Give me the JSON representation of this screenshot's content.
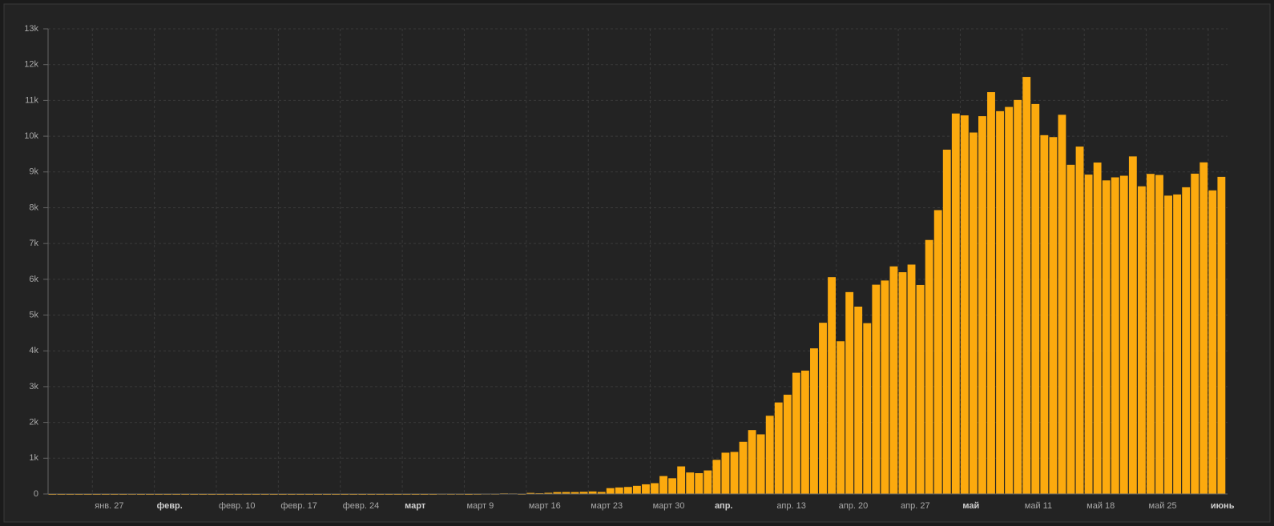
{
  "chart_data": {
    "type": "bar",
    "color": "#fcaa0e",
    "grid": true,
    "ylim": [
      0,
      13000
    ],
    "yticks": [
      0,
      {
        "value": 1000,
        "label": "1k"
      },
      {
        "value": 2000,
        "label": "2k"
      },
      {
        "value": 3000,
        "label": "3k"
      },
      {
        "value": 4000,
        "label": "4k"
      },
      {
        "value": 5000,
        "label": "5k"
      },
      {
        "value": 6000,
        "label": "6k"
      },
      {
        "value": 7000,
        "label": "7k"
      },
      {
        "value": 8000,
        "label": "8k"
      },
      {
        "value": 9000,
        "label": "9k"
      },
      {
        "value": 10000,
        "label": "10k"
      },
      {
        "value": 11000,
        "label": "11k"
      },
      {
        "value": 12000,
        "label": "12k"
      },
      {
        "value": 13000,
        "label": "13k"
      }
    ],
    "categories": [
      null,
      null,
      null,
      null,
      null,
      "янв. 27",
      null,
      null,
      null,
      null,
      null,
      null,
      "февр.",
      null,
      null,
      null,
      null,
      null,
      null,
      "февр. 10",
      null,
      null,
      null,
      null,
      null,
      null,
      "февр. 17",
      null,
      null,
      null,
      null,
      null,
      null,
      "февр. 24",
      null,
      null,
      null,
      null,
      null,
      null,
      "март",
      null,
      null,
      null,
      null,
      null,
      null,
      "март 9",
      null,
      null,
      null,
      null,
      null,
      null,
      "март 16",
      null,
      null,
      null,
      null,
      null,
      null,
      "март 23",
      null,
      null,
      null,
      null,
      null,
      null,
      "март 30",
      null,
      null,
      null,
      null,
      null,
      null,
      "апр.",
      null,
      null,
      null,
      null,
      null,
      null,
      "апр. 13",
      null,
      null,
      null,
      null,
      null,
      null,
      "апр. 20",
      null,
      null,
      null,
      null,
      null,
      null,
      "апр. 27",
      null,
      null,
      null,
      null,
      null,
      null,
      "май",
      null,
      null,
      null,
      null,
      null,
      null,
      "май 11",
      null,
      null,
      null,
      null,
      null,
      null,
      "май 18",
      null,
      null,
      null,
      null,
      null,
      null,
      "май 25",
      null,
      null,
      null,
      null,
      null,
      null,
      "июнь",
      null
    ],
    "values": [
      0,
      0,
      0,
      0,
      0,
      0,
      0,
      0,
      0,
      2,
      0,
      0,
      0,
      0,
      0,
      0,
      0,
      0,
      0,
      0,
      0,
      0,
      0,
      0,
      0,
      0,
      0,
      0,
      0,
      0,
      0,
      0,
      0,
      0,
      0,
      0,
      0,
      0,
      0,
      0,
      1,
      0,
      0,
      1,
      6,
      3,
      4,
      0,
      3,
      8,
      6,
      17,
      14,
      4,
      30,
      21,
      33,
      52,
      54,
      53,
      61,
      71,
      57,
      163,
      182,
      196,
      228,
      270,
      302,
      501,
      440,
      771,
      601,
      582,
      658,
      954,
      1154,
      1175,
      1459,
      1786,
      1667,
      2186,
      2558,
      2774,
      3388,
      3448,
      4070,
      4785,
      6060,
      4268,
      5642,
      5236,
      4774,
      5849,
      5966,
      6361,
      6198,
      6411,
      5841,
      7099,
      7933,
      9623,
      10633,
      10581,
      10102,
      10559,
      11231,
      10699,
      10817,
      11012,
      11656,
      10899,
      10028,
      9974,
      10598,
      9200,
      9709,
      8926,
      9263,
      8764,
      8849,
      8894,
      9434,
      8599,
      8946,
      8915,
      8338,
      8371,
      8572,
      8952,
      9268,
      8485,
      8863
    ]
  }
}
